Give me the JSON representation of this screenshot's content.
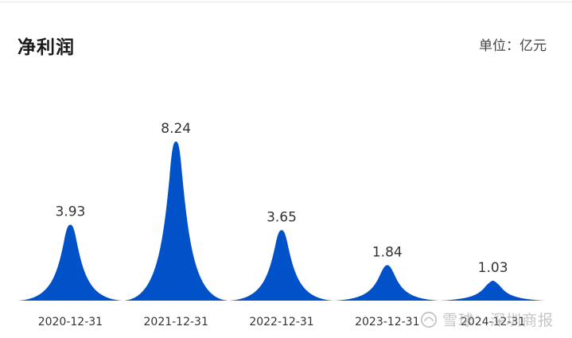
{
  "header": {
    "title": "净利润",
    "unit": "单位：亿元"
  },
  "watermark": {
    "text": "雪球：深圳商报",
    "icon": "snowball-logo-icon"
  },
  "colors": {
    "area": "#0151c8",
    "value_label": "#333333",
    "tick_label": "#333333"
  },
  "chart_data": {
    "type": "area",
    "title": "净利润",
    "unit": "亿元",
    "categories": [
      "2020-12-31",
      "2021-12-31",
      "2022-12-31",
      "2023-12-31",
      "2024-12-31"
    ],
    "values": [
      3.93,
      8.24,
      3.65,
      1.84,
      1.03
    ],
    "ylim": [
      0,
      8.24
    ],
    "grid": false,
    "legend": "none"
  }
}
